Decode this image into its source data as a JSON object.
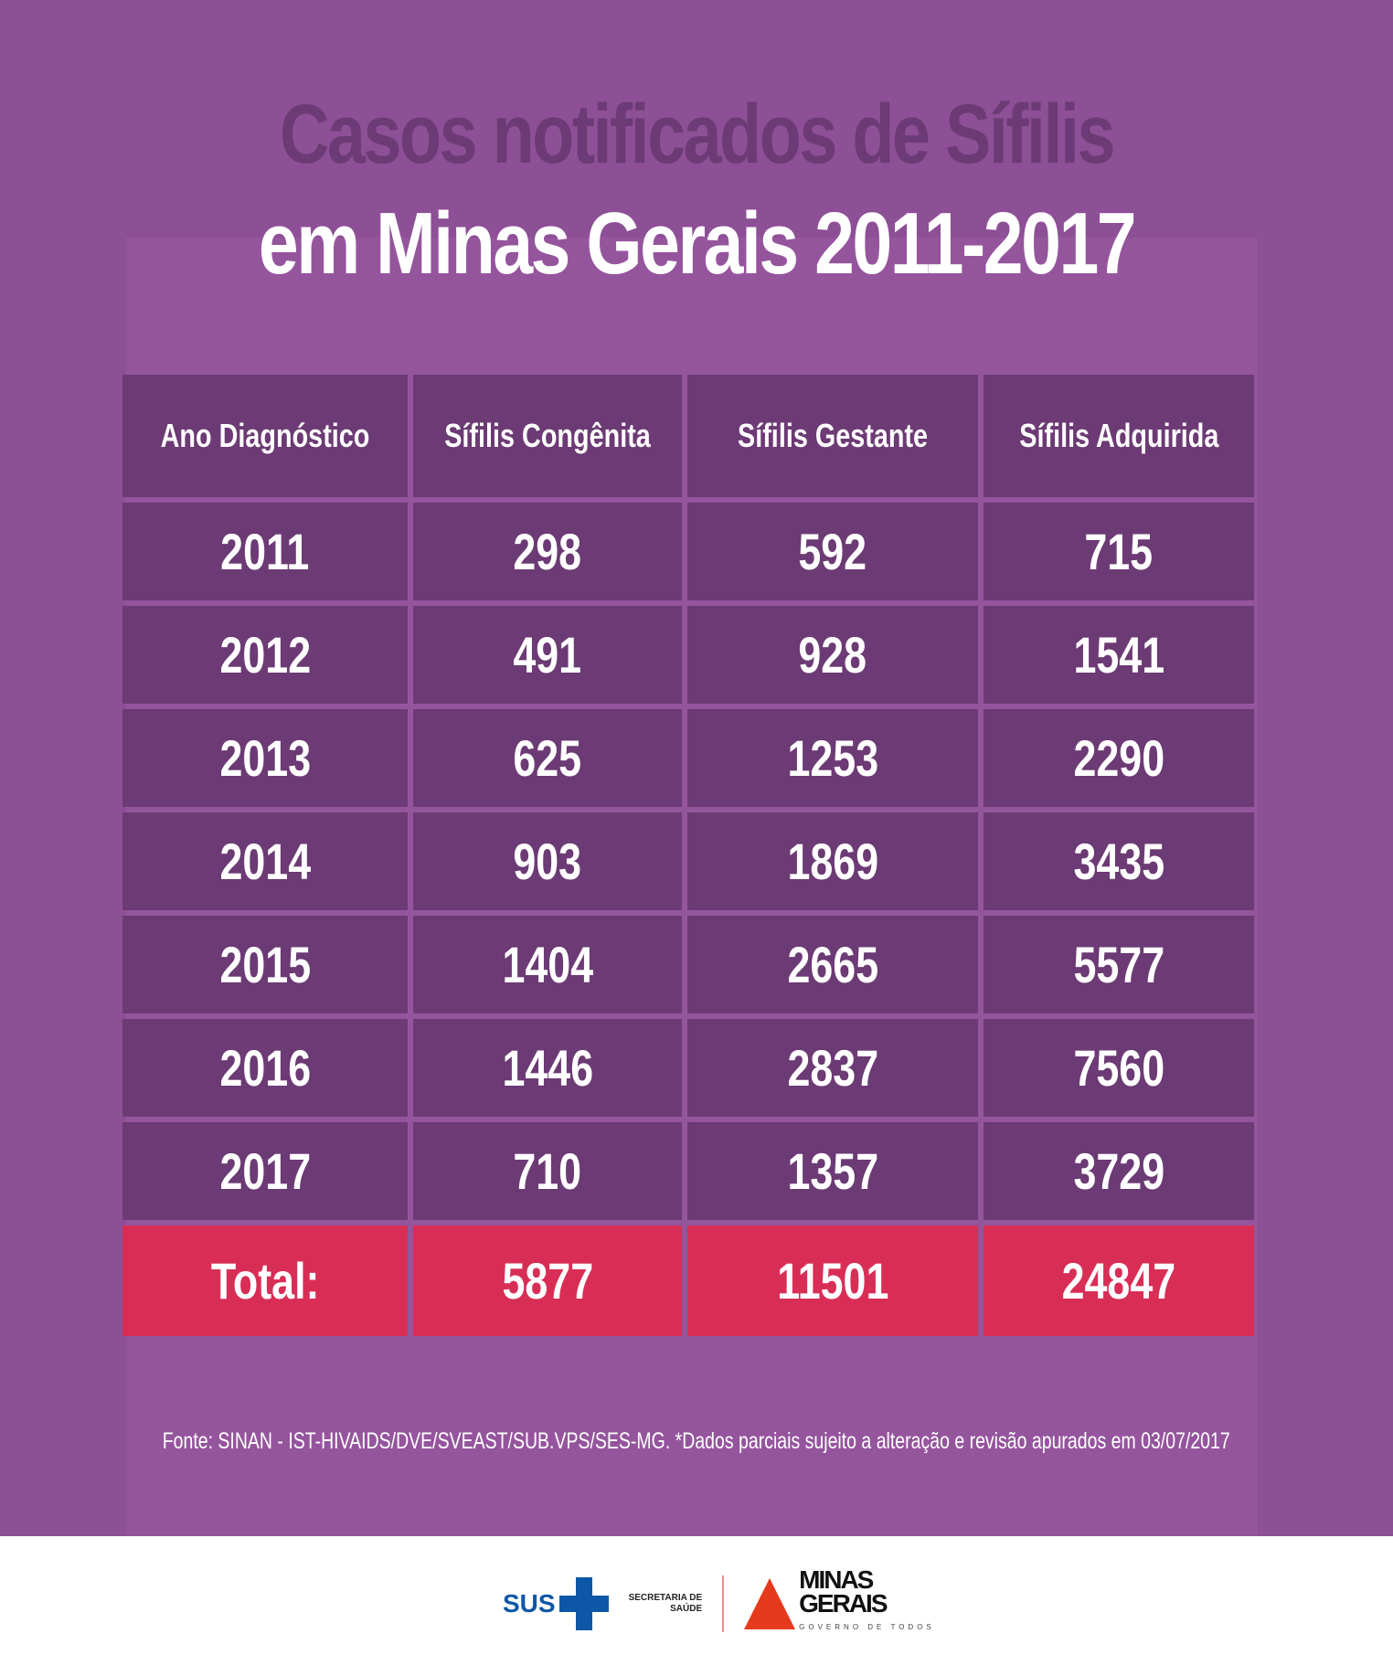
{
  "title": {
    "line1": "Casos notificados de Sífilis",
    "line2": "em Minas Gerais 2011-2017"
  },
  "table": {
    "headers": [
      "Ano Diagnóstico",
      "Sífilis Congênita",
      "Sífilis Gestante",
      "Sífilis Adquirida"
    ],
    "rows": [
      [
        "2011",
        "298",
        "592",
        "715"
      ],
      [
        "2012",
        "491",
        "928",
        "1541"
      ],
      [
        "2013",
        "625",
        "1253",
        "2290"
      ],
      [
        "2014",
        "903",
        "1869",
        "3435"
      ],
      [
        "2015",
        "1404",
        "2665",
        "5577"
      ],
      [
        "2016",
        "1446",
        "2837",
        "7560"
      ],
      [
        "2017",
        "710",
        "1357",
        "3729"
      ]
    ],
    "total": [
      "Total:",
      "5877",
      "11501",
      "24847"
    ]
  },
  "source": "Fonte: SINAN - IST-HIVAIDS/DVE/SVEAST/SUB.VPS/SES-MG. *Dados parciais sujeito a alteração e revisão apurados em 03/07/2017",
  "logos": {
    "sus": "SUS",
    "secretaria": "SECRETARIA DE",
    "saude": "SAÚDE",
    "minas": "MINAS",
    "gerais": "GERAIS",
    "governo": "GOVERNO DE TODOS"
  },
  "colors": {
    "background": "#8d4f96",
    "cell": "#6c3a74",
    "total": "#d82e56"
  }
}
